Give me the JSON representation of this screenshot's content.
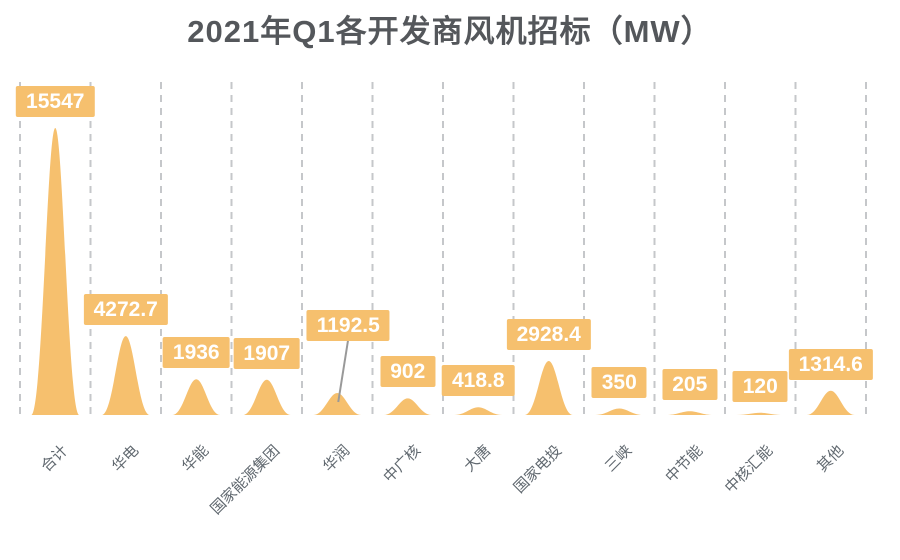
{
  "page": {
    "background": "#FFFFFF"
  },
  "chart_data": {
    "type": "bar",
    "mark_shape": "bell-peak",
    "title": "2021年Q1各开发商风机招标（MW）",
    "unit": "MW",
    "categories": [
      "合计",
      "华电",
      "华能",
      "国家能源集团",
      "华润",
      "中广核",
      "大唐",
      "国家电投",
      "三峡",
      "中节能",
      "中核汇能",
      "其他"
    ],
    "values": [
      15547,
      4272.7,
      1936,
      1907,
      1192.5,
      902,
      418.8,
      2928.4,
      350,
      205,
      120,
      1314.6
    ],
    "value_labels": [
      "15547",
      "4272.7",
      "1936",
      "1907",
      "1192.5",
      "902",
      "418.8",
      "2928.4",
      "350",
      "205",
      "120",
      "1314.6"
    ],
    "xlabel": "",
    "ylabel": "",
    "ylim": [
      0,
      15547
    ],
    "grid": {
      "vertical_dashed": true,
      "line_count": 13,
      "horizontal": false
    },
    "legend": "none",
    "data_labels": "all points, orange boxes with white bold text above each peak",
    "callout": {
      "category": "华润",
      "value": 1192.5,
      "has_leader_line": true
    }
  },
  "colors": {
    "mark_fill": "#F6C06E",
    "label_box": "#F6C06E",
    "label_text": "#FFFFFF",
    "title_text": "#54575B",
    "axis_text": "#60686F",
    "gridline": "#C5C7CA",
    "leader_line": "#999999"
  }
}
